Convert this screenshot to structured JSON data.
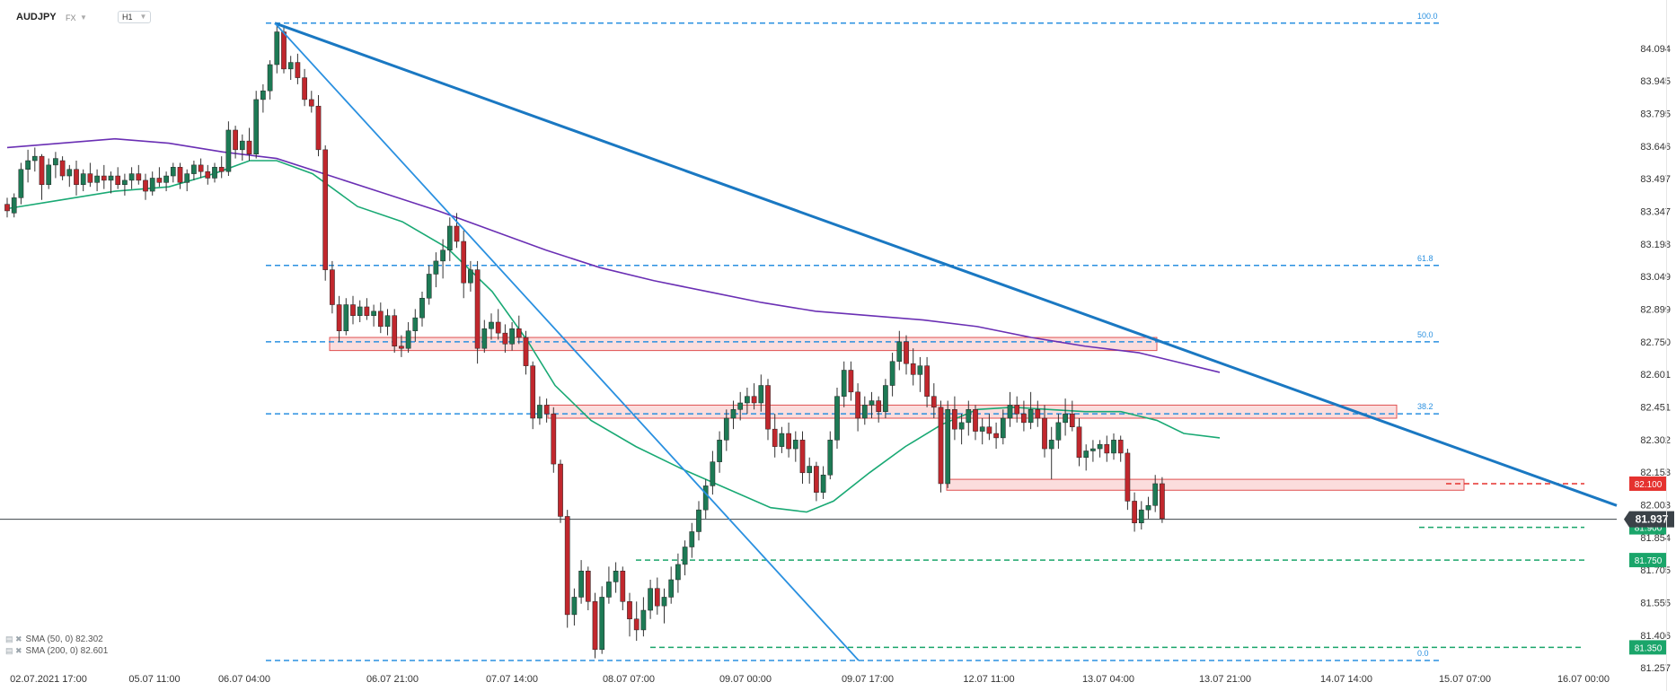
{
  "header": {
    "symbol": "AUDJPY",
    "asset_class": "FX",
    "timeframe": "H1"
  },
  "legend": [
    {
      "label": "SMA (50, 0) 82.302",
      "color": "#19a974"
    },
    {
      "label": "SMA (200, 0) 82.601",
      "color": "#6a2fb4"
    }
  ],
  "price_axis": {
    "ticks": [
      "84.094",
      "83.945",
      "83.795",
      "83.646",
      "83.497",
      "83.347",
      "83.198",
      "83.049",
      "82.899",
      "82.750",
      "82.601",
      "82.451",
      "82.302",
      "82.153",
      "82.003",
      "81.854",
      "81.705",
      "81.555",
      "81.406",
      "81.257"
    ],
    "current_price": "81.937",
    "current_color": "#3b4248",
    "level_labels": [
      {
        "text": "82.100",
        "color": "#e5322f",
        "value": 82.1
      },
      {
        "text": "81.900",
        "color": "#1aa56a",
        "value": 81.9
      },
      {
        "text": "81.750",
        "color": "#1aa56a",
        "value": 81.75
      },
      {
        "text": "81.350",
        "color": "#1aa56a",
        "value": 81.35
      }
    ]
  },
  "time_axis": [
    "02.07.2021  17:00",
    "05.07  11:00",
    "06.07  04:00",
    "06.07  21:00",
    "07.07  14:00",
    "08.07  07:00",
    "09.07  00:00",
    "09.07  17:00",
    "12.07  11:00",
    "13.07  04:00",
    "13.07  21:00",
    "14.07  14:00",
    "15.07  07:00",
    "16.07  00:00"
  ],
  "chart_data": {
    "type": "candlestick",
    "title": "AUDJPY H1",
    "ylim": [
      81.257,
      84.2
    ],
    "fibonacci": [
      {
        "label": "100.0",
        "value": 84.21
      },
      {
        "label": "61.8",
        "value": 83.1
      },
      {
        "label": "50.0",
        "value": 82.75
      },
      {
        "label": "38.2",
        "value": 82.42
      },
      {
        "label": "0.0",
        "value": 81.29
      }
    ],
    "horizontal_levels": [
      {
        "value": 82.1,
        "color": "#e5322f"
      },
      {
        "value": 81.9,
        "color": "#1aa56a"
      },
      {
        "value": 81.75,
        "color": "#1aa56a"
      },
      {
        "value": 81.35,
        "color": "#1aa56a"
      }
    ],
    "resistance_zones": [
      {
        "from": 82.71,
        "to": 82.77
      },
      {
        "from": 82.4,
        "to": 82.46
      },
      {
        "from": 82.07,
        "to": 82.12
      }
    ],
    "trendlines": [
      {
        "from": {
          "time": "06.07 04:00",
          "price": 84.21
        },
        "to": {
          "time": "15.07 18:00",
          "price": 82.0
        },
        "color": "#1a78c2"
      },
      {
        "from": {
          "time": "06.07 04:00",
          "price": 84.21
        },
        "to": {
          "time": "09.07 05:00",
          "price": 81.29
        },
        "color": "#2a90e0"
      }
    ],
    "series": [
      {
        "name": "SMA (50, 0)",
        "last": 82.302,
        "color": "#19a974",
        "values": [
          [
            0,
            83.36
          ],
          [
            60,
            83.4
          ],
          [
            120,
            83.44
          ],
          [
            180,
            83.46
          ],
          [
            230,
            83.52
          ],
          [
            270,
            83.58
          ],
          [
            300,
            83.58
          ],
          [
            340,
            83.52
          ],
          [
            390,
            83.37
          ],
          [
            440,
            83.3
          ],
          [
            490,
            83.18
          ],
          [
            540,
            82.98
          ],
          [
            580,
            82.75
          ],
          [
            610,
            82.55
          ],
          [
            650,
            82.39
          ],
          [
            700,
            82.27
          ],
          [
            750,
            82.17
          ],
          [
            800,
            82.08
          ],
          [
            850,
            81.99
          ],
          [
            890,
            81.97
          ],
          [
            920,
            82.02
          ],
          [
            960,
            82.15
          ],
          [
            1000,
            82.27
          ],
          [
            1040,
            82.37
          ],
          [
            1080,
            82.44
          ],
          [
            1120,
            82.45
          ],
          [
            1160,
            82.44
          ],
          [
            1200,
            82.43
          ],
          [
            1240,
            82.43
          ],
          [
            1280,
            82.39
          ],
          [
            1310,
            82.33
          ],
          [
            1350,
            82.31
          ]
        ]
      },
      {
        "name": "SMA (200, 0)",
        "last": 82.601,
        "color": "#6a2fb4",
        "values": [
          [
            0,
            83.64
          ],
          [
            60,
            83.66
          ],
          [
            120,
            83.68
          ],
          [
            180,
            83.66
          ],
          [
            240,
            83.62
          ],
          [
            300,
            83.59
          ],
          [
            360,
            83.51
          ],
          [
            420,
            83.43
          ],
          [
            480,
            83.35
          ],
          [
            540,
            83.26
          ],
          [
            600,
            83.17
          ],
          [
            660,
            83.09
          ],
          [
            720,
            83.03
          ],
          [
            780,
            82.98
          ],
          [
            840,
            82.93
          ],
          [
            900,
            82.89
          ],
          [
            960,
            82.87
          ],
          [
            1020,
            82.85
          ],
          [
            1080,
            82.82
          ],
          [
            1140,
            82.77
          ],
          [
            1200,
            82.73
          ],
          [
            1260,
            82.7
          ],
          [
            1300,
            82.66
          ],
          [
            1350,
            82.61
          ]
        ]
      }
    ],
    "candles": [
      [
        83.38,
        83.41,
        83.32,
        83.35
      ],
      [
        83.34,
        83.43,
        83.32,
        83.41
      ],
      [
        83.41,
        83.57,
        83.38,
        83.54
      ],
      [
        83.54,
        83.63,
        83.48,
        83.58
      ],
      [
        83.58,
        83.64,
        83.53,
        83.6
      ],
      [
        83.6,
        83.61,
        83.4,
        83.47
      ],
      [
        83.47,
        83.59,
        83.45,
        83.56
      ],
      [
        83.56,
        83.62,
        83.5,
        83.59
      ],
      [
        83.58,
        83.6,
        83.49,
        83.51
      ],
      [
        83.51,
        83.56,
        83.46,
        83.54
      ],
      [
        83.54,
        83.58,
        83.42,
        83.47
      ],
      [
        83.47,
        83.54,
        83.44,
        83.52
      ],
      [
        83.52,
        83.57,
        83.46,
        83.48
      ],
      [
        83.48,
        83.54,
        83.44,
        83.51
      ],
      [
        83.51,
        83.56,
        83.45,
        83.49
      ],
      [
        83.49,
        83.53,
        83.43,
        83.51
      ],
      [
        83.51,
        83.55,
        83.45,
        83.47
      ],
      [
        83.47,
        83.52,
        83.42,
        83.49
      ],
      [
        83.49,
        83.55,
        83.45,
        83.52
      ],
      [
        83.52,
        83.56,
        83.47,
        83.49
      ],
      [
        83.49,
        83.52,
        83.4,
        83.44
      ],
      [
        83.44,
        83.53,
        83.42,
        83.5
      ],
      [
        83.5,
        83.55,
        83.46,
        83.48
      ],
      [
        83.48,
        83.53,
        83.44,
        83.51
      ],
      [
        83.51,
        83.57,
        83.48,
        83.55
      ],
      [
        83.55,
        83.57,
        83.45,
        83.48
      ],
      [
        83.48,
        83.54,
        83.44,
        83.52
      ],
      [
        83.52,
        83.58,
        83.49,
        83.56
      ],
      [
        83.56,
        83.59,
        83.5,
        83.53
      ],
      [
        83.53,
        83.56,
        83.47,
        83.5
      ],
      [
        83.5,
        83.57,
        83.48,
        83.55
      ],
      [
        83.55,
        83.6,
        83.5,
        83.53
      ],
      [
        83.53,
        83.76,
        83.51,
        83.72
      ],
      [
        83.72,
        83.74,
        83.59,
        83.63
      ],
      [
        83.63,
        83.7,
        83.58,
        83.67
      ],
      [
        83.67,
        83.73,
        83.58,
        83.61
      ],
      [
        83.61,
        83.9,
        83.59,
        83.86
      ],
      [
        83.86,
        83.93,
        83.8,
        83.9
      ],
      [
        83.9,
        84.04,
        83.86,
        84.02
      ],
      [
        84.02,
        84.21,
        83.98,
        84.17
      ],
      [
        84.17,
        84.2,
        83.98,
        84.0
      ],
      [
        84.0,
        84.06,
        83.95,
        84.03
      ],
      [
        84.03,
        84.07,
        83.93,
        83.96
      ],
      [
        83.96,
        84.0,
        83.83,
        83.86
      ],
      [
        83.86,
        83.9,
        83.8,
        83.83
      ],
      [
        83.83,
        83.88,
        83.6,
        83.63
      ],
      [
        83.63,
        83.65,
        83.03,
        83.08
      ],
      [
        83.08,
        83.12,
        82.88,
        82.92
      ],
      [
        82.92,
        82.96,
        82.75,
        82.8
      ],
      [
        82.8,
        82.95,
        82.78,
        82.92
      ],
      [
        82.92,
        82.96,
        82.83,
        82.87
      ],
      [
        82.87,
        82.94,
        82.84,
        82.91
      ],
      [
        82.91,
        82.95,
        82.85,
        82.87
      ],
      [
        82.87,
        82.92,
        82.82,
        82.89
      ],
      [
        82.89,
        82.93,
        82.79,
        82.82
      ],
      [
        82.82,
        82.9,
        82.78,
        82.87
      ],
      [
        82.87,
        82.9,
        82.7,
        82.73
      ],
      [
        82.73,
        82.78,
        82.68,
        82.72
      ],
      [
        82.72,
        82.84,
        82.7,
        82.8
      ],
      [
        82.8,
        82.9,
        82.75,
        82.86
      ],
      [
        82.86,
        82.98,
        82.82,
        82.95
      ],
      [
        82.95,
        83.1,
        82.92,
        83.06
      ],
      [
        83.06,
        83.16,
        83.0,
        83.12
      ],
      [
        83.12,
        83.22,
        83.04,
        83.17
      ],
      [
        83.17,
        83.32,
        83.12,
        83.28
      ],
      [
        83.28,
        83.34,
        83.18,
        83.21
      ],
      [
        83.21,
        83.26,
        82.95,
        83.02
      ],
      [
        83.02,
        83.12,
        82.98,
        83.08
      ],
      [
        83.08,
        83.12,
        82.65,
        82.72
      ],
      [
        82.72,
        82.85,
        82.7,
        82.81
      ],
      [
        82.81,
        82.88,
        82.76,
        82.84
      ],
      [
        82.84,
        82.9,
        82.76,
        82.79
      ],
      [
        82.79,
        82.83,
        82.7,
        82.74
      ],
      [
        82.74,
        82.84,
        82.71,
        82.81
      ],
      [
        82.81,
        82.87,
        82.74,
        82.77
      ],
      [
        82.77,
        82.8,
        82.6,
        82.64
      ],
      [
        82.64,
        82.66,
        82.35,
        82.4
      ],
      [
        82.4,
        82.5,
        82.37,
        82.46
      ],
      [
        82.46,
        82.49,
        82.38,
        82.42
      ],
      [
        82.42,
        82.45,
        82.15,
        82.19
      ],
      [
        82.19,
        82.21,
        81.92,
        81.95
      ],
      [
        81.95,
        81.98,
        81.44,
        81.5
      ],
      [
        81.5,
        81.62,
        81.45,
        81.58
      ],
      [
        81.58,
        81.75,
        81.55,
        81.7
      ],
      [
        81.7,
        81.72,
        81.52,
        81.56
      ],
      [
        81.56,
        81.6,
        81.3,
        81.34
      ],
      [
        81.34,
        81.63,
        81.32,
        81.58
      ],
      [
        81.58,
        81.72,
        81.55,
        81.65
      ],
      [
        81.65,
        81.74,
        81.6,
        81.7
      ],
      [
        81.7,
        81.72,
        81.52,
        81.56
      ],
      [
        81.56,
        81.6,
        81.4,
        81.48
      ],
      [
        81.48,
        81.56,
        81.38,
        81.43
      ],
      [
        81.43,
        81.58,
        81.4,
        81.52
      ],
      [
        81.52,
        81.66,
        81.48,
        81.62
      ],
      [
        81.62,
        81.67,
        81.5,
        81.54
      ],
      [
        81.54,
        81.62,
        81.46,
        81.58
      ],
      [
        81.58,
        81.72,
        81.55,
        81.66
      ],
      [
        81.66,
        81.78,
        81.6,
        81.73
      ],
      [
        81.73,
        81.84,
        81.68,
        81.81
      ],
      [
        81.81,
        81.92,
        81.76,
        81.88
      ],
      [
        81.88,
        82.02,
        81.84,
        81.98
      ],
      [
        81.98,
        82.12,
        81.94,
        82.09
      ],
      [
        82.09,
        82.25,
        82.05,
        82.2
      ],
      [
        82.2,
        82.34,
        82.15,
        82.3
      ],
      [
        82.3,
        82.44,
        82.25,
        82.4
      ],
      [
        82.4,
        82.48,
        82.35,
        82.44
      ],
      [
        82.44,
        82.52,
        82.39,
        82.47
      ],
      [
        82.47,
        82.54,
        82.42,
        82.5
      ],
      [
        82.5,
        82.56,
        82.44,
        82.47
      ],
      [
        82.47,
        82.6,
        82.43,
        82.55
      ],
      [
        82.55,
        82.58,
        82.3,
        82.35
      ],
      [
        82.35,
        82.42,
        82.22,
        82.27
      ],
      [
        82.27,
        82.36,
        82.24,
        82.33
      ],
      [
        82.33,
        82.38,
        82.22,
        82.26
      ],
      [
        82.26,
        82.34,
        82.2,
        82.3
      ],
      [
        82.3,
        82.34,
        82.1,
        82.15
      ],
      [
        82.15,
        82.22,
        82.1,
        82.18
      ],
      [
        82.18,
        82.2,
        82.02,
        82.06
      ],
      [
        82.06,
        82.18,
        82.03,
        82.14
      ],
      [
        82.14,
        82.34,
        82.12,
        82.3
      ],
      [
        82.3,
        82.54,
        82.26,
        82.5
      ],
      [
        82.5,
        82.66,
        82.45,
        82.62
      ],
      [
        82.62,
        82.66,
        82.48,
        82.52
      ],
      [
        82.52,
        82.56,
        82.34,
        82.4
      ],
      [
        82.4,
        82.5,
        82.37,
        82.46
      ],
      [
        82.46,
        82.52,
        82.4,
        82.48
      ],
      [
        82.48,
        82.5,
        82.38,
        82.43
      ],
      [
        82.43,
        82.58,
        82.4,
        82.55
      ],
      [
        82.55,
        82.7,
        82.5,
        82.66
      ],
      [
        82.66,
        82.8,
        82.62,
        82.75
      ],
      [
        82.75,
        82.78,
        82.6,
        82.65
      ],
      [
        82.65,
        82.72,
        82.55,
        82.6
      ],
      [
        82.6,
        82.68,
        82.52,
        82.64
      ],
      [
        82.64,
        82.68,
        82.45,
        82.5
      ],
      [
        82.5,
        82.56,
        82.4,
        82.45
      ],
      [
        82.45,
        82.48,
        82.06,
        82.1
      ],
      [
        82.1,
        82.48,
        82.08,
        82.44
      ],
      [
        82.44,
        82.5,
        82.3,
        82.35
      ],
      [
        82.35,
        82.42,
        82.28,
        82.38
      ],
      [
        82.38,
        82.48,
        82.32,
        82.44
      ],
      [
        82.44,
        82.46,
        82.3,
        82.34
      ],
      [
        82.34,
        82.4,
        82.28,
        82.36
      ],
      [
        82.36,
        82.42,
        82.3,
        82.33
      ],
      [
        82.33,
        82.38,
        82.26,
        82.31
      ],
      [
        82.31,
        82.44,
        82.28,
        82.4
      ],
      [
        82.4,
        82.52,
        82.36,
        82.46
      ],
      [
        82.46,
        82.5,
        82.38,
        82.42
      ],
      [
        82.42,
        82.48,
        82.34,
        82.38
      ],
      [
        82.38,
        82.52,
        82.35,
        82.44
      ],
      [
        82.44,
        82.48,
        82.36,
        82.4
      ],
      [
        82.4,
        82.46,
        82.22,
        82.26
      ],
      [
        82.26,
        82.36,
        82.12,
        82.3
      ],
      [
        82.3,
        82.42,
        82.26,
        82.38
      ],
      [
        82.38,
        82.49,
        82.32,
        82.42
      ],
      [
        82.42,
        82.48,
        82.34,
        82.36
      ],
      [
        82.36,
        82.4,
        82.18,
        82.22
      ],
      [
        82.22,
        82.28,
        82.16,
        82.25
      ],
      [
        82.25,
        82.3,
        82.2,
        82.26
      ],
      [
        82.26,
        82.3,
        82.22,
        82.28
      ],
      [
        82.28,
        82.32,
        82.2,
        82.24
      ],
      [
        82.24,
        82.33,
        82.21,
        82.3
      ],
      [
        82.3,
        82.32,
        82.2,
        82.24
      ],
      [
        82.24,
        82.26,
        81.98,
        82.02
      ],
      [
        82.02,
        82.06,
        81.88,
        81.92
      ],
      [
        81.92,
        82.02,
        81.89,
        81.98
      ],
      [
        81.98,
        82.04,
        81.94,
        82.0
      ],
      [
        82.0,
        82.14,
        81.97,
        82.1
      ],
      [
        82.1,
        82.13,
        81.92,
        81.94
      ]
    ]
  }
}
